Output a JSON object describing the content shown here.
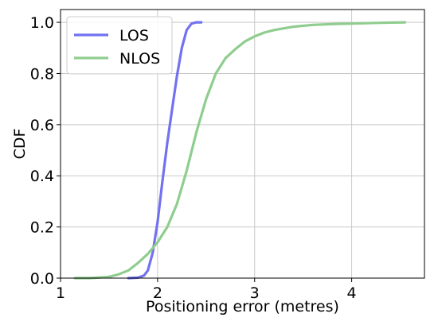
{
  "chart_data": {
    "type": "line",
    "xlabel": "Positioning error (metres)",
    "ylabel": "CDF",
    "xlim": [
      1,
      4.75
    ],
    "ylim": [
      0,
      1.05
    ],
    "xticks": [
      1,
      2,
      3,
      4
    ],
    "yticks": [
      0.0,
      0.2,
      0.4,
      0.6,
      0.8,
      1.0
    ],
    "xtick_labels": [
      "1",
      "2",
      "3",
      "4"
    ],
    "ytick_labels": [
      "0.0",
      "0.2",
      "0.4",
      "0.6",
      "0.8",
      "1.0"
    ],
    "grid": true,
    "legend": "top-left",
    "series": [
      {
        "name": "LOS",
        "color": "#7272f0",
        "x": [
          1.7,
          1.8,
          1.86,
          1.9,
          1.95,
          2.0,
          2.05,
          2.1,
          2.15,
          2.2,
          2.25,
          2.3,
          2.35,
          2.4,
          2.45
        ],
        "y": [
          0.0,
          0.002,
          0.01,
          0.03,
          0.1,
          0.22,
          0.38,
          0.53,
          0.66,
          0.79,
          0.9,
          0.97,
          0.995,
          1.0,
          1.0
        ]
      },
      {
        "name": "NLOS",
        "color": "#8fcd8f",
        "x": [
          1.15,
          1.3,
          1.5,
          1.6,
          1.7,
          1.8,
          1.9,
          2.0,
          2.1,
          2.2,
          2.3,
          2.4,
          2.5,
          2.6,
          2.7,
          2.8,
          2.9,
          3.0,
          3.1,
          3.2,
          3.4,
          3.6,
          3.8,
          4.0,
          4.3,
          4.55
        ],
        "y": [
          0.0,
          0.0,
          0.005,
          0.015,
          0.03,
          0.06,
          0.095,
          0.14,
          0.2,
          0.29,
          0.42,
          0.57,
          0.7,
          0.8,
          0.86,
          0.895,
          0.925,
          0.945,
          0.96,
          0.97,
          0.983,
          0.99,
          0.993,
          0.995,
          0.998,
          1.0
        ]
      }
    ]
  }
}
